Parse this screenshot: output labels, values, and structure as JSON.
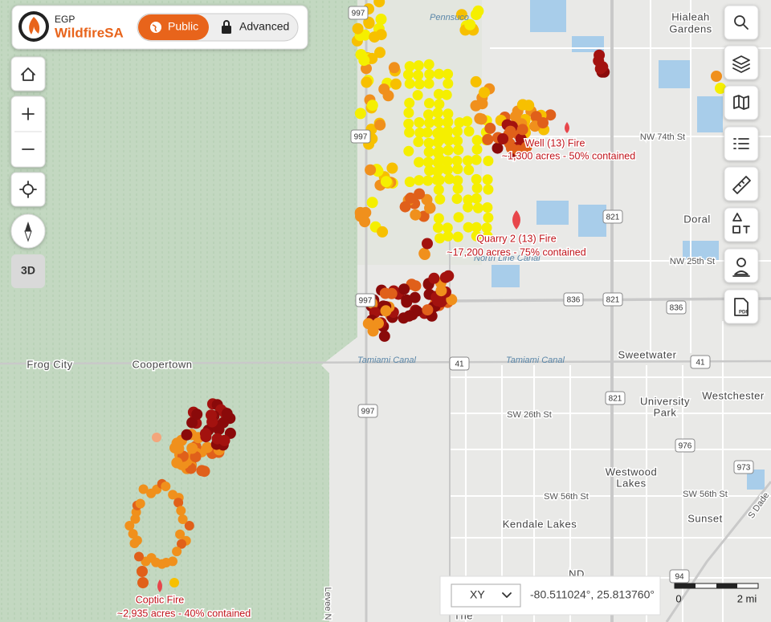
{
  "header": {
    "agency": "EGP",
    "app_name": "WildfireSA"
  },
  "mode_toggle": {
    "public": "Public",
    "advanced": "Advanced"
  },
  "view_toggle": "3D",
  "fires": [
    {
      "name": "Well (13) Fire",
      "summary": "~1,300 acres - 50% contained"
    },
    {
      "name": "Quarry 2 (13) Fire",
      "summary": "~17,200 acres - 75% contained"
    },
    {
      "name": "Coptic Fire",
      "summary": "~2,935 acres - 40% contained"
    }
  ],
  "places": [
    [
      "Hialeah",
      "Gardens"
    ],
    [
      "Doral"
    ],
    [
      "Sweetwater"
    ],
    [
      "University",
      "Park"
    ],
    [
      "Westchester"
    ],
    [
      "Westwood",
      "Lakes"
    ],
    [
      "Sunset"
    ],
    [
      "Kendale Lakes"
    ],
    [
      "Frog City"
    ],
    [
      "Coopertown"
    ],
    [
      "The"
    ],
    [
      "ND"
    ]
  ],
  "streets": [
    "NW 74th St",
    "NW 25th St",
    "SW 26th St",
    "SW 56th St",
    "SW 56th St",
    "S Dade",
    "Levee N"
  ],
  "water": [
    "Pennsuco",
    "North Line Canal",
    "Tamiami Canal",
    "Tamiami Canal"
  ],
  "shields": [
    "997",
    "997",
    "997",
    "997",
    "821",
    "821",
    "821",
    "836",
    "836",
    "41",
    "41",
    "976",
    "973",
    "94"
  ],
  "coordinates": {
    "system": "XY",
    "value": "-80.511024°, 25.813760°"
  },
  "scale": {
    "start": "0",
    "end": "2 mi"
  }
}
